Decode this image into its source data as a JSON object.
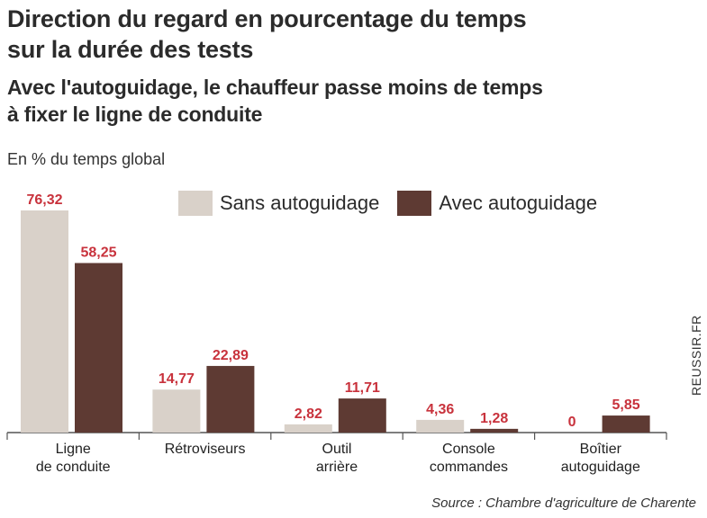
{
  "title_lines": [
    "Direction du regard en pourcentage du temps",
    "sur la durée des tests"
  ],
  "subtitle_lines": [
    "Avec l'autoguidage, le chauffeur passe moins de temps",
    "à fixer le ligne de conduite"
  ],
  "unit": "En % du temps global",
  "source": "Source : Chambre d'agriculture de Charente",
  "credit": "REUSSIR.FR",
  "colors": {
    "sans": "#d9d1c9",
    "avec": "#5e3a33",
    "value_label": "#c8323c",
    "axis": "#555555"
  },
  "chart_data": {
    "type": "bar",
    "categories": [
      [
        "Ligne",
        "de conduite"
      ],
      [
        "Rétroviseurs"
      ],
      [
        "Outil",
        "arrière"
      ],
      [
        "Console",
        "commandes"
      ],
      [
        "Boîtier",
        "autoguidage"
      ]
    ],
    "series": [
      {
        "name": "Sans autoguidage",
        "values": [
          76.32,
          14.77,
          2.82,
          4.36,
          0
        ],
        "labels": [
          "76,32",
          "14,77",
          "2,82",
          "4,36",
          "0"
        ]
      },
      {
        "name": "Avec autoguidage",
        "values": [
          58.25,
          22.89,
          11.71,
          1.28,
          5.85
        ],
        "labels": [
          "58,25",
          "22,89",
          "11,71",
          "1,28",
          "5,85"
        ]
      }
    ],
    "ylim": [
      0,
      76.32
    ],
    "legend": "top-right",
    "grid": false
  }
}
